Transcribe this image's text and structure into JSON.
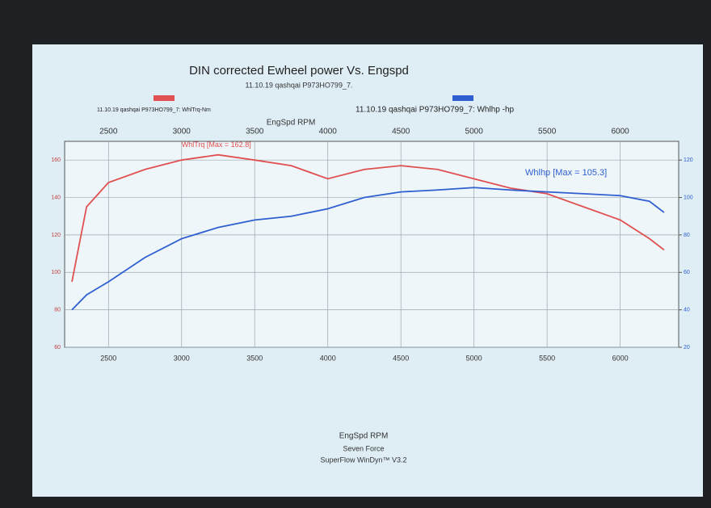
{
  "chart_data": {
    "type": "line",
    "title": "DIN corrected Ewheel power Vs. Engspd",
    "subtitle": "11.10.19 qashqai P973HO799_7.",
    "x_label": "EngSpd RPM",
    "footer": [
      "Seven Force",
      "SuperFlow WinDyn™ V3.2"
    ],
    "x": [
      2250,
      2350,
      2500,
      2750,
      3000,
      3250,
      3500,
      3750,
      4000,
      4250,
      4500,
      4750,
      5000,
      5250,
      5500,
      5750,
      6000,
      6200,
      6300
    ],
    "series": [
      {
        "name": "11.10.19 qashqai P973HO799_7: WhlTrq-Nm",
        "color": "#e05050",
        "axis": "y",
        "values": [
          95,
          135,
          148,
          155,
          160,
          162.8,
          160,
          157,
          150,
          155,
          157,
          155,
          150,
          145,
          142,
          135,
          128,
          118,
          112
        ]
      },
      {
        "name": "11.10.19 qashqai P973HO799_7: Whlhp -hp",
        "color": "#2f5fd0",
        "axis": "y2",
        "values": [
          40,
          48,
          55,
          68,
          78,
          84,
          88,
          90,
          94,
          100,
          103,
          104,
          105.3,
          104,
          103,
          102,
          101,
          98,
          92
        ]
      }
    ],
    "annotations": [
      "WhlTrq [Max = 162.8]",
      "Whlhp [Max = 105.3]"
    ],
    "xlim": [
      2200,
      6400
    ],
    "xticks": [
      2500,
      3000,
      3500,
      4000,
      4500,
      5000,
      5500,
      6000
    ],
    "ylim": [
      60,
      170
    ],
    "yticks": [
      60,
      80,
      100,
      120,
      140,
      160
    ],
    "y2lim": [
      20,
      130
    ],
    "y2ticks": [
      20,
      40,
      60,
      80,
      100,
      120
    ],
    "grid": true
  }
}
